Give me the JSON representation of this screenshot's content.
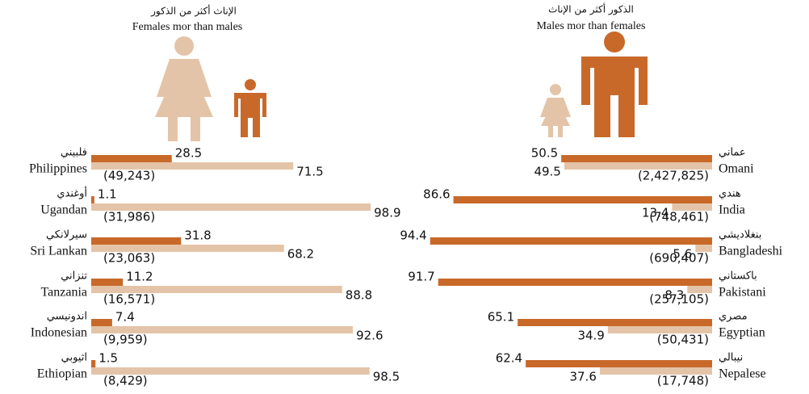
{
  "chart_data": [
    {
      "type": "bar",
      "side": "left",
      "title_ar": "الإناث أكثر من الذكور",
      "title_en": "Females mor than males",
      "categories_ar": [
        "فلبيني",
        "أوغندي",
        "سيرلانكي",
        "تنزاني",
        "اندونيسي",
        "اثيوبي"
      ],
      "categories_en": [
        "Philippines",
        "Ugandan",
        "Sri Lankan",
        "Tanzania",
        "Indonesian",
        "Ethiopian"
      ],
      "totals": [
        "(49,243)",
        "(31,986)",
        "(23,063)",
        "(16,571)",
        "(9,959)",
        "(8,429)"
      ],
      "xlim": [
        0,
        100
      ],
      "series": [
        {
          "color": "#c8692a",
          "values": [
            28.5,
            1.1,
            31.8,
            11.2,
            7.4,
            1.5
          ]
        },
        {
          "color": "#e4c4a8",
          "values": [
            71.5,
            98.9,
            68.2,
            88.8,
            92.6,
            98.5
          ]
        }
      ]
    },
    {
      "type": "bar",
      "side": "right",
      "title_ar": "الذكور أكثر من الإناث",
      "title_en": "Males mor than females",
      "categories_ar": [
        "عماني",
        "هندي",
        "بنغلاديشي",
        "باكستاني",
        "مصري",
        "نيبالي"
      ],
      "categories_en": [
        "Omani",
        "India",
        "Bangladeshi",
        "Pakistani",
        "Egyptian",
        "Nepalese"
      ],
      "totals": [
        "(2,427,825)",
        "(748,461)",
        "(690,407)",
        "(257,105)",
        "(50,431)",
        "(17,748)"
      ],
      "xlim": [
        0,
        100
      ],
      "series": [
        {
          "color": "#c8692a",
          "values": [
            50.5,
            86.6,
            94.4,
            91.7,
            65.1,
            62.4
          ]
        },
        {
          "color": "#e4c4a8",
          "values": [
            49.5,
            13.4,
            5.6,
            8.3,
            34.9,
            37.6
          ]
        }
      ]
    }
  ]
}
